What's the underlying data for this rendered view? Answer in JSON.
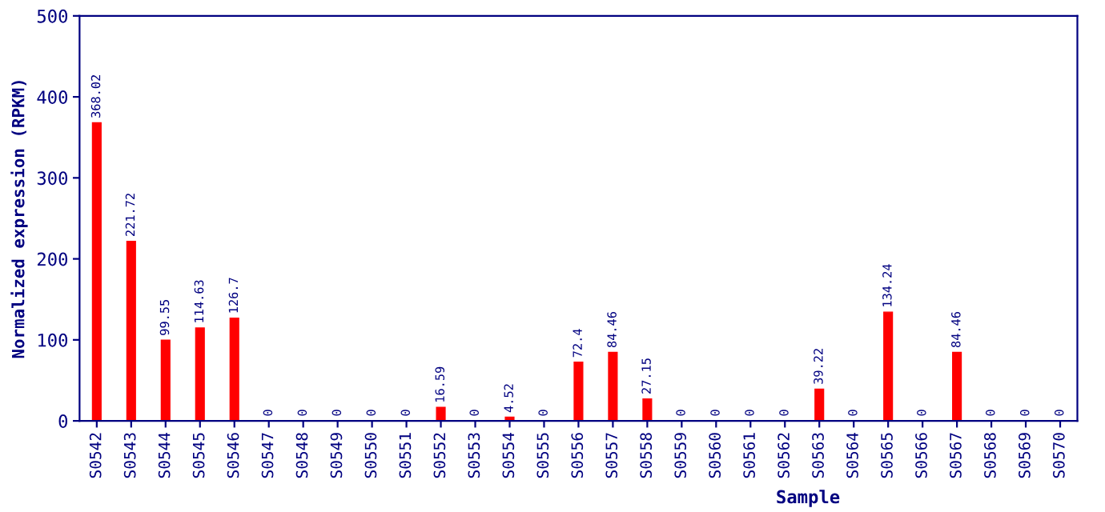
{
  "chart_data": {
    "type": "bar",
    "xlabel": "Sample",
    "ylabel": "Normalized expression (RPKM)",
    "categories": [
      "S0542",
      "S0543",
      "S0544",
      "S0545",
      "S0546",
      "S0547",
      "S0548",
      "S0549",
      "S0550",
      "S0551",
      "S0552",
      "S0553",
      "S0554",
      "S0555",
      "S0556",
      "S0557",
      "S0558",
      "S0559",
      "S0560",
      "S0561",
      "S0562",
      "S0563",
      "S0564",
      "S0565",
      "S0566",
      "S0567",
      "S0568",
      "S0569",
      "S0570"
    ],
    "values": [
      368.02,
      221.72,
      99.55,
      114.63,
      126.7,
      0,
      0,
      0,
      0,
      0,
      16.59,
      0,
      4.52,
      0,
      72.4,
      84.46,
      27.15,
      0,
      0,
      0,
      0,
      39.22,
      0,
      134.24,
      0,
      84.46,
      0,
      0,
      0
    ],
    "color": "#ff0000",
    "ylim": [
      0,
      500
    ],
    "yticks": [
      0,
      100,
      200,
      300,
      400,
      500
    ],
    "data_labels": true,
    "grid": false,
    "legend": false
  }
}
